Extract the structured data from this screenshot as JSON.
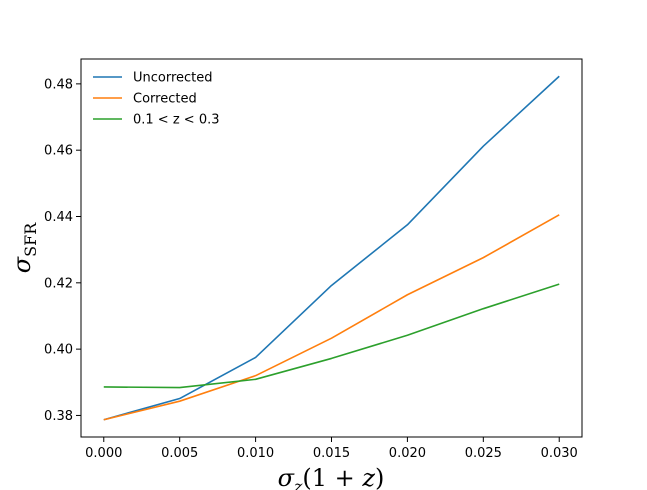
{
  "chart_data": {
    "type": "line",
    "title": "",
    "xlabel": "σz(1 + z)",
    "ylabel": "σSFR",
    "xlim": [
      -0.0015,
      0.0315
    ],
    "ylim": [
      0.3735,
      0.4875
    ],
    "x_ticks": [
      0.0,
      0.005,
      0.01,
      0.015,
      0.02,
      0.025,
      0.03
    ],
    "x_tick_labels": [
      "0.000",
      "0.005",
      "0.010",
      "0.015",
      "0.020",
      "0.025",
      "0.030"
    ],
    "y_ticks": [
      0.38,
      0.4,
      0.42,
      0.44,
      0.46,
      0.48
    ],
    "y_tick_labels": [
      "0.38",
      "0.40",
      "0.42",
      "0.44",
      "0.46",
      "0.48"
    ],
    "grid": false,
    "legend_position": "top-left",
    "x": [
      0.0,
      0.005,
      0.01,
      0.015,
      0.02,
      0.025,
      0.03
    ],
    "series": [
      {
        "name": "Uncorrected",
        "color": "#1f77b4",
        "values": [
          0.3787,
          0.3851,
          0.3975,
          0.4192,
          0.4375,
          0.4612,
          0.4823
        ]
      },
      {
        "name": "Corrected",
        "color": "#ff7f0e",
        "values": [
          0.3787,
          0.3843,
          0.392,
          0.4033,
          0.4164,
          0.4276,
          0.4405
        ]
      },
      {
        "name": "0.1 < z < 0.3",
        "color": "#2ca02c",
        "values": [
          0.3886,
          0.3884,
          0.3909,
          0.3972,
          0.4042,
          0.4122,
          0.4196
        ]
      }
    ]
  }
}
